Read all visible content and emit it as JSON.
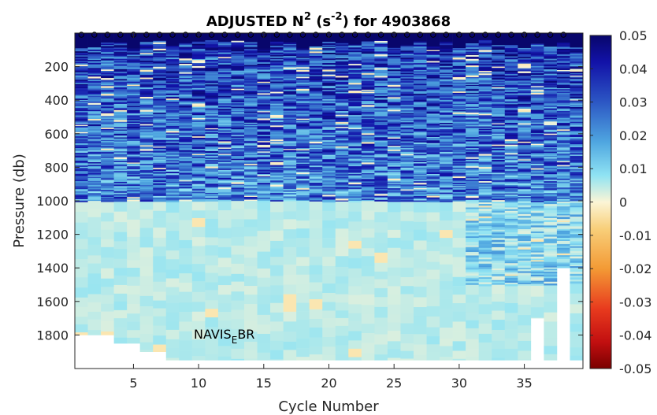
{
  "chart_data": {
    "type": "heatmap",
    "title": {
      "main": "ADJUSTED N",
      "sup1": "2",
      "mid": " (s",
      "sup2": "-2",
      "end": ") for 4903868"
    },
    "xlabel": "Cycle Number",
    "ylabel": "Pressure (db)",
    "xlim": [
      1,
      39
    ],
    "ylim": [
      0,
      2000
    ],
    "y_reversed": true,
    "xticks": [
      5,
      10,
      15,
      20,
      25,
      30,
      35
    ],
    "yticks": [
      200,
      400,
      600,
      800,
      1000,
      1200,
      1400,
      1600,
      1800
    ],
    "colorbar": {
      "range": [
        -0.05,
        0.05
      ],
      "ticks": [
        "0.05",
        "0.04",
        "0.03",
        "0.02",
        "0.01",
        "0",
        "-0.01",
        "-0.02",
        "-0.03",
        "-0.04",
        "-0.05"
      ],
      "colormap": "blue-cyan-white-yellow-red"
    },
    "annotation": {
      "base": "NAVIS",
      "sub": "E",
      "rest": "BR",
      "x": 10,
      "y": 1790
    },
    "surface_markers": {
      "symbol": "o",
      "y": 10,
      "cycles": [
        1,
        2,
        3,
        4,
        5,
        6,
        7,
        8,
        9,
        10,
        11,
        12,
        13,
        14,
        15,
        16,
        17,
        18,
        19,
        20,
        21,
        22,
        23,
        24,
        25,
        26,
        27,
        28,
        29,
        30,
        31,
        32,
        33,
        34,
        35,
        36,
        37,
        38
      ]
    },
    "profile_max_pressure": [
      1800,
      1800,
      1800,
      1850,
      1850,
      1900,
      1900,
      1950,
      1950,
      1950,
      1950,
      1950,
      1950,
      1950,
      1950,
      1950,
      1950,
      1950,
      1950,
      1950,
      1950,
      1950,
      1950,
      1950,
      1950,
      1950,
      1950,
      1950,
      1950,
      1950,
      1950,
      1950,
      1950,
      1950,
      1950,
      1700,
      1950,
      1400
    ],
    "value_summary": {
      "surface_0_100db": 0.05,
      "upper_100_1000db": "0.01 to 0.05 (mostly 0.02-0.04)",
      "deep_1000_2000db": "0 to 0.01"
    },
    "colors": {
      "dark_blue": "#08066b",
      "blue": "#2c57c4",
      "cyan": "#7fe0f0",
      "pale": "#f8f3d8",
      "yellow": "#f8d27e",
      "red": "#d7191c"
    }
  }
}
